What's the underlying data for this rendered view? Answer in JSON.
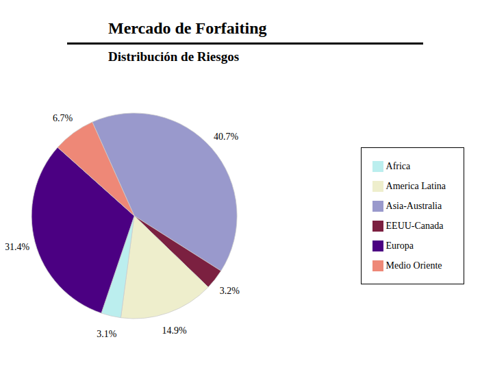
{
  "chart_data": {
    "type": "pie",
    "title": "Mercado de Forfaiting",
    "subtitle": "Distribución de Riesgos",
    "categories": [
      "Asia-Australia",
      "EEUU-Canada",
      "America Latina",
      "Africa",
      "Europa",
      "Medio Oriente"
    ],
    "values": [
      40.7,
      3.2,
      14.9,
      3.1,
      31.4,
      6.7
    ],
    "value_labels": [
      "40.7%",
      "3.2%",
      "14.9%",
      "3.1%",
      "31.4%",
      "6.7%"
    ],
    "colors": [
      "#9999CC",
      "#7B2040",
      "#EEEECC",
      "#BBEEEE",
      "#4B0082",
      "#EE8877"
    ],
    "data_labels": true,
    "legend": "right"
  }
}
